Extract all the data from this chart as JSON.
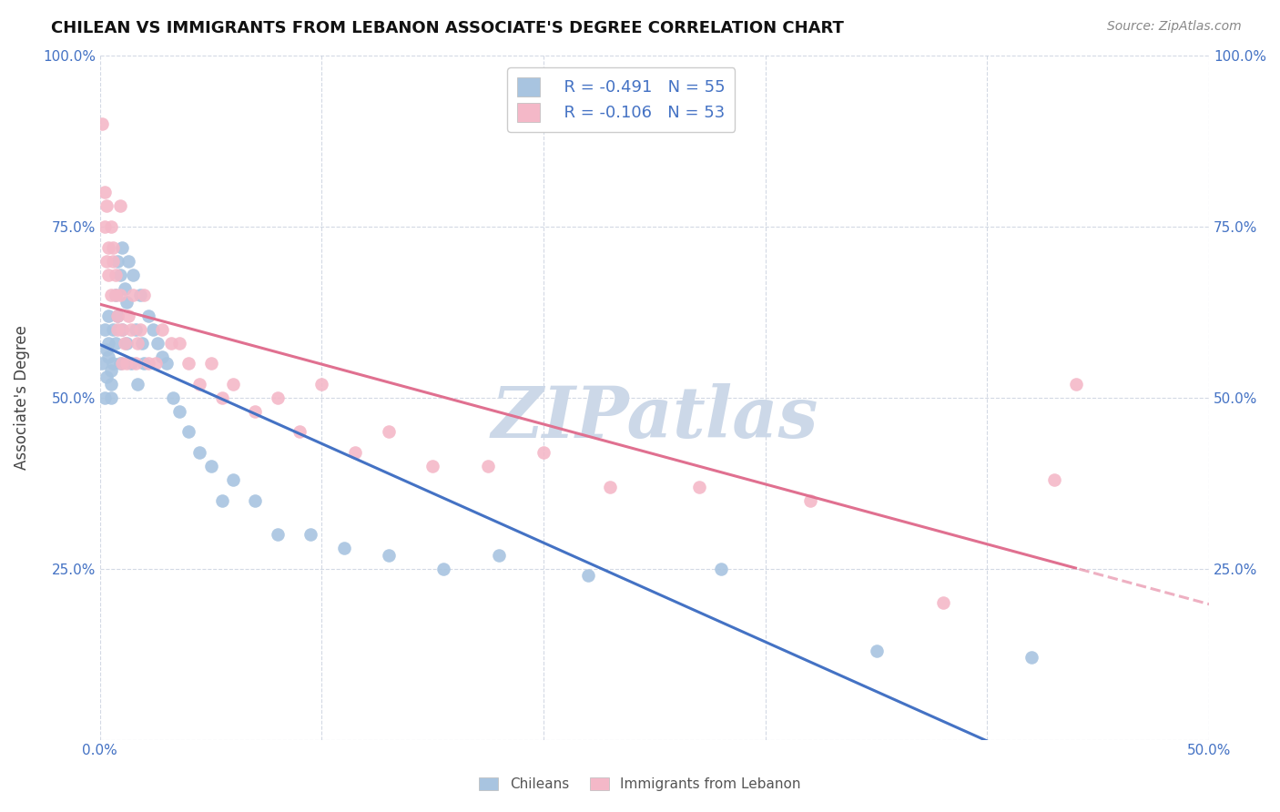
{
  "title": "CHILEAN VS IMMIGRANTS FROM LEBANON ASSOCIATE'S DEGREE CORRELATION CHART",
  "source": "Source: ZipAtlas.com",
  "ylabel": "Associate's Degree",
  "x_min": 0.0,
  "x_max": 0.5,
  "y_min": 0.0,
  "y_max": 1.0,
  "color_chileans": "#a8c4e0",
  "color_lebanon": "#f4b8c8",
  "color_blue": "#4472c4",
  "color_trend_chileans": "#4472c4",
  "color_trend_lebanon": "#e07090",
  "watermark": "ZIPatlas",
  "watermark_color": "#ccd8e8",
  "legend_r_chileans": "R = -0.491",
  "legend_n_chileans": "N = 55",
  "legend_r_lebanon": "R = -0.106",
  "legend_n_lebanon": "N = 53",
  "chileans_x": [
    0.001,
    0.002,
    0.002,
    0.003,
    0.003,
    0.004,
    0.004,
    0.004,
    0.005,
    0.005,
    0.005,
    0.006,
    0.006,
    0.007,
    0.007,
    0.008,
    0.008,
    0.009,
    0.009,
    0.01,
    0.01,
    0.011,
    0.012,
    0.012,
    0.013,
    0.014,
    0.015,
    0.016,
    0.017,
    0.018,
    0.019,
    0.02,
    0.022,
    0.024,
    0.026,
    0.028,
    0.03,
    0.033,
    0.036,
    0.04,
    0.045,
    0.05,
    0.055,
    0.06,
    0.07,
    0.08,
    0.095,
    0.11,
    0.13,
    0.155,
    0.18,
    0.22,
    0.28,
    0.35,
    0.42
  ],
  "chileans_y": [
    0.55,
    0.6,
    0.5,
    0.57,
    0.53,
    0.56,
    0.58,
    0.62,
    0.54,
    0.52,
    0.5,
    0.6,
    0.55,
    0.65,
    0.58,
    0.7,
    0.62,
    0.68,
    0.55,
    0.72,
    0.6,
    0.66,
    0.64,
    0.58,
    0.7,
    0.55,
    0.68,
    0.6,
    0.52,
    0.65,
    0.58,
    0.55,
    0.62,
    0.6,
    0.58,
    0.56,
    0.55,
    0.5,
    0.48,
    0.45,
    0.42,
    0.4,
    0.35,
    0.38,
    0.35,
    0.3,
    0.3,
    0.28,
    0.27,
    0.25,
    0.27,
    0.24,
    0.25,
    0.13,
    0.12
  ],
  "lebanon_x": [
    0.001,
    0.002,
    0.002,
    0.003,
    0.003,
    0.004,
    0.004,
    0.005,
    0.005,
    0.006,
    0.006,
    0.007,
    0.007,
    0.008,
    0.008,
    0.009,
    0.009,
    0.01,
    0.01,
    0.011,
    0.012,
    0.013,
    0.014,
    0.015,
    0.016,
    0.017,
    0.018,
    0.02,
    0.022,
    0.025,
    0.028,
    0.032,
    0.036,
    0.04,
    0.045,
    0.05,
    0.055,
    0.06,
    0.07,
    0.08,
    0.09,
    0.1,
    0.115,
    0.13,
    0.15,
    0.175,
    0.2,
    0.23,
    0.27,
    0.32,
    0.38,
    0.43,
    0.44
  ],
  "lebanon_y": [
    0.9,
    0.75,
    0.8,
    0.78,
    0.7,
    0.72,
    0.68,
    0.75,
    0.65,
    0.72,
    0.7,
    0.68,
    0.65,
    0.62,
    0.6,
    0.78,
    0.65,
    0.55,
    0.6,
    0.58,
    0.55,
    0.62,
    0.6,
    0.65,
    0.55,
    0.58,
    0.6,
    0.65,
    0.55,
    0.55,
    0.6,
    0.58,
    0.58,
    0.55,
    0.52,
    0.55,
    0.5,
    0.52,
    0.48,
    0.5,
    0.45,
    0.52,
    0.42,
    0.45,
    0.4,
    0.4,
    0.42,
    0.37,
    0.37,
    0.35,
    0.2,
    0.38,
    0.52
  ]
}
